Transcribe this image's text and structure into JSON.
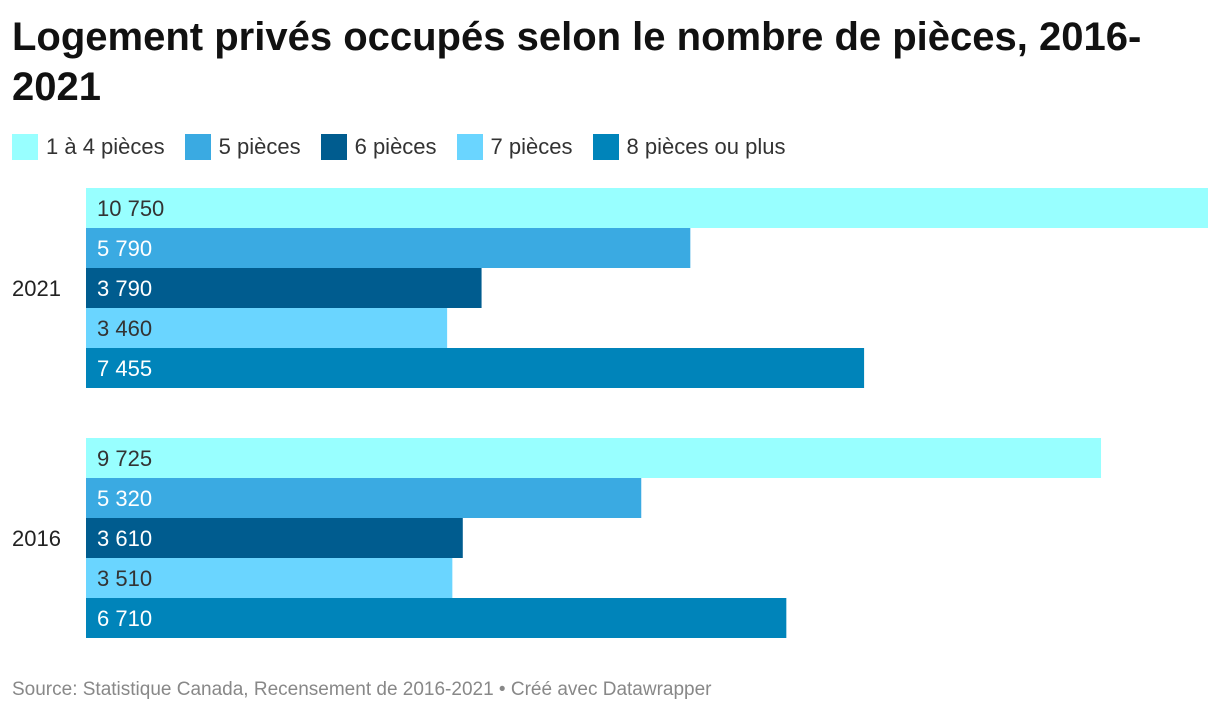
{
  "title": "Logement privés occupés selon le nombre de pièces, 2016-2021",
  "source": "Source: Statistique Canada, Recensement de 2016-2021 • Créé avec Datawrapper",
  "chart_data": {
    "type": "bar",
    "orientation": "horizontal",
    "title": "Logement privés occupés selon le nombre de pièces, 2016-2021",
    "categories": [
      "2021",
      "2016"
    ],
    "series": [
      {
        "name": "1 à 4 pièces",
        "color": "#98FFFF",
        "values": [
          10750,
          9725
        ],
        "labels": [
          "10 750",
          "9 725"
        ],
        "label_color": "#333333"
      },
      {
        "name": "5 pièces",
        "color": "#3AAAE2",
        "values": [
          5790,
          5320
        ],
        "labels": [
          "5 790",
          "5 320"
        ],
        "label_color": "#ffffff"
      },
      {
        "name": "6 pièces",
        "color": "#005C8F",
        "values": [
          3790,
          3610
        ],
        "labels": [
          "3 790",
          "3 610"
        ],
        "label_color": "#ffffff"
      },
      {
        "name": "7 pièces",
        "color": "#6AD5FF",
        "values": [
          3460,
          3510
        ],
        "labels": [
          "3 460",
          "3 510"
        ],
        "label_color": "#333333"
      },
      {
        "name": "8 pièces ou plus",
        "color": "#0084BA",
        "values": [
          7455,
          6710
        ],
        "labels": [
          "7 455",
          "6 710"
        ],
        "label_color": "#ffffff"
      }
    ],
    "xlim": [
      0,
      10750
    ],
    "xlabel": "",
    "ylabel": "",
    "grid": false,
    "legend": "top-left"
  }
}
